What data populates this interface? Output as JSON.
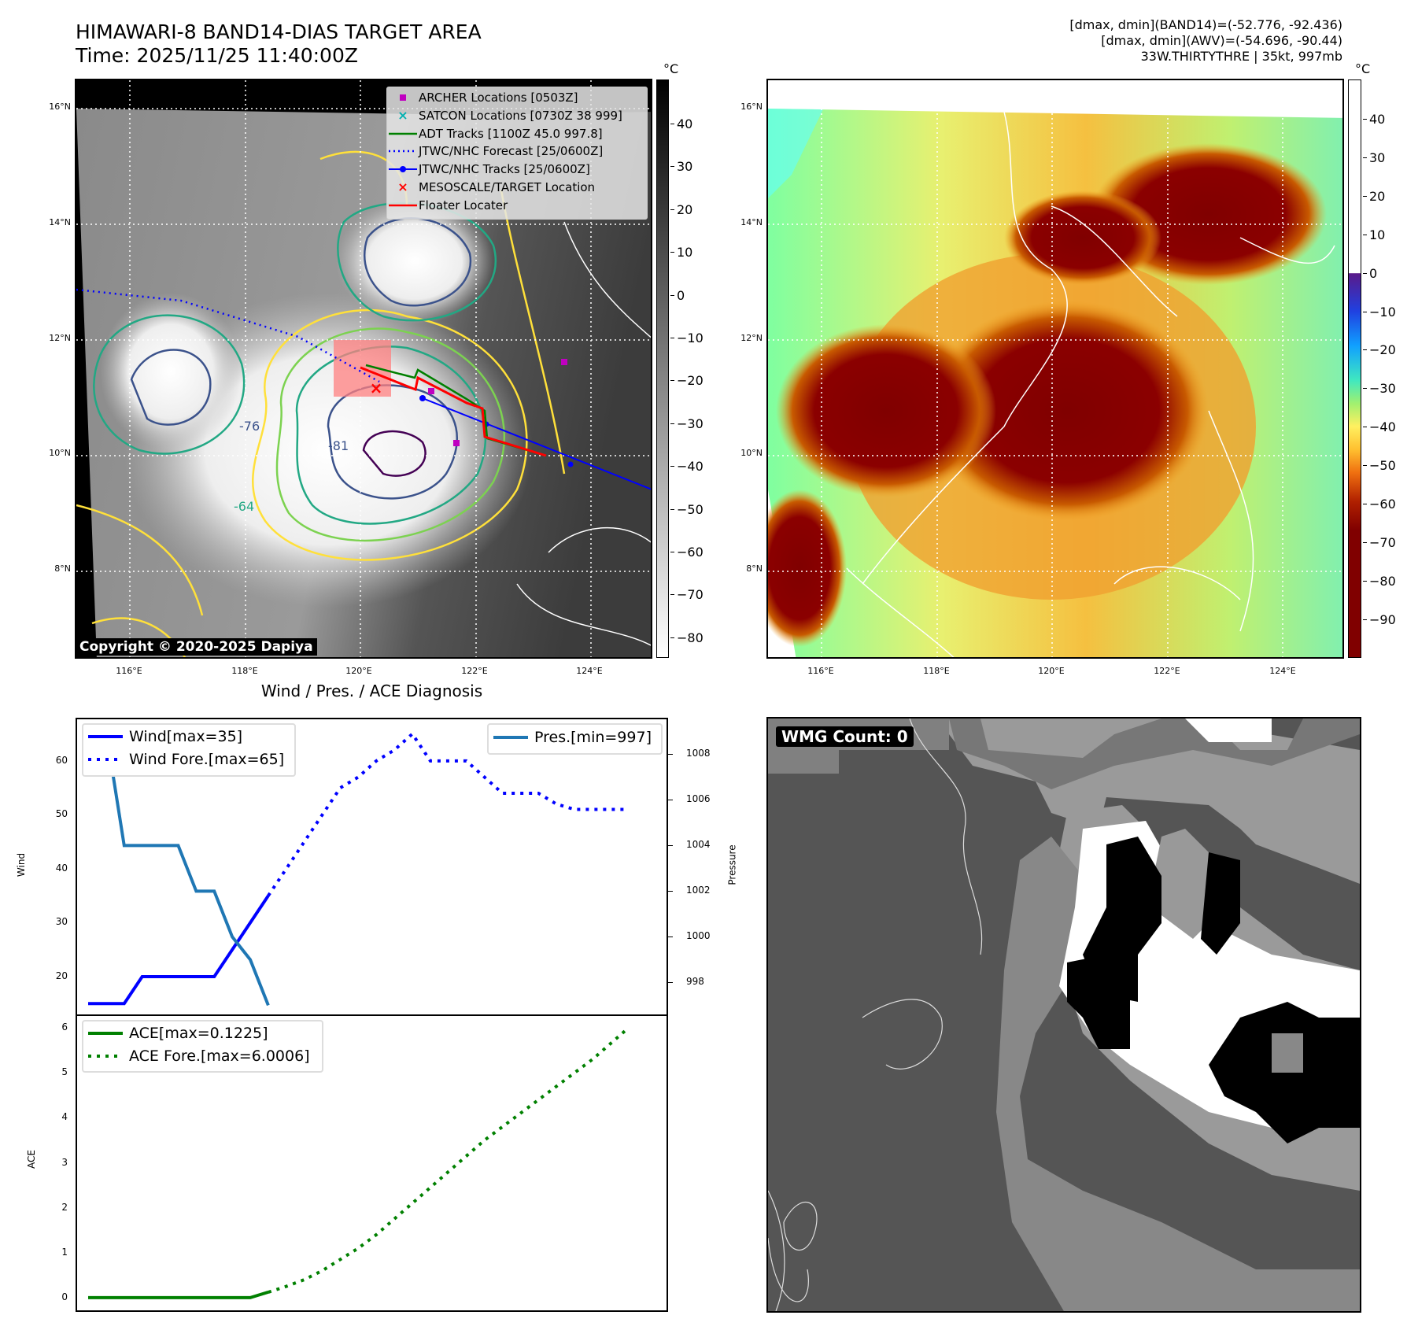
{
  "header": {
    "title": "HIMAWARI-8 BAND14-DIAS TARGET AREA",
    "time": "Time: 2025/11/25 11:40:00Z",
    "stats_band14": "[dmax, dmin](BAND14)=(-52.776, -92.436)",
    "stats_awv": "[dmax, dmin](AWV)=(-54.696, -90.44)",
    "storm": "33W.THIRTYTHRE | 35kt, 997mb"
  },
  "map": {
    "lat_labels": [
      "16°N",
      "14°N",
      "12°N",
      "10°N",
      "8°N"
    ],
    "lon_labels": [
      "116°E",
      "118°E",
      "120°E",
      "122°E",
      "124°E"
    ],
    "unit": "°C",
    "contour_labels": [
      "-81",
      "-64",
      "-76"
    ],
    "copyright": "Copyright © 2020-2025 Dapiya",
    "legend": [
      {
        "label": "ARCHER Locations [0503Z]",
        "color": "#c000c0",
        "icon": "square-marker-icon"
      },
      {
        "label": "SATCON Locations [0730Z 38 999]",
        "color": "#00b0b0",
        "icon": "x-marker-icon"
      },
      {
        "label": "ADT Tracks [1100Z 45.0 997.8]",
        "color": "#008000",
        "icon": "solid-line-icon"
      },
      {
        "label": "JTWC/NHC Forecast [25/0600Z]",
        "color": "#0000ff",
        "icon": "dotted-line-icon"
      },
      {
        "label": "JTWC/NHC Tracks [25/0600Z]",
        "color": "#0000ff",
        "icon": "line-dot-icon"
      },
      {
        "label": "MESOSCALE/TARGET Location",
        "color": "#ff0000",
        "icon": "x-marker-icon"
      },
      {
        "label": "Floater Locater",
        "color": "#ff0000",
        "icon": "solid-line-icon"
      }
    ],
    "gray_colorbar_ticks": [
      "40",
      "30",
      "20",
      "10",
      "0",
      "−10",
      "−20",
      "−30",
      "−40",
      "−50",
      "−60",
      "−70",
      "−80"
    ],
    "color_colorbar_ticks": [
      "40",
      "30",
      "20",
      "10",
      "0",
      "−10",
      "−20",
      "−30",
      "−40",
      "−50",
      "−60",
      "−70",
      "−80",
      "−90"
    ]
  },
  "wmg": {
    "label": "WMG Count: 0"
  },
  "chart_data": {
    "type": "line",
    "title": "Wind / Pres. / ACE Diagnosis",
    "panels": [
      {
        "ylabel": "Wind",
        "ylim": [
          13,
          68
        ],
        "yticks": [
          "60",
          "50",
          "40",
          "30",
          "20"
        ],
        "ytick_values": [
          60,
          50,
          40,
          30,
          20
        ],
        "y2label": "Pressure",
        "y2lim": [
          996.6,
          1009.6
        ],
        "y2ticks": [
          "1008",
          "1006",
          "1004",
          "1002",
          "1000",
          "998"
        ],
        "y2tick_values": [
          1008,
          1006,
          1004,
          1002,
          1000,
          998
        ],
        "series": [
          {
            "name": "Wind[max=35]",
            "axis": "left",
            "style": "solid",
            "color": "#0000ff",
            "x": [
              0,
              1,
              2,
              3,
              4,
              5,
              6,
              7,
              8,
              9,
              10
            ],
            "values": [
              15,
              15,
              15,
              20,
              20,
              20,
              20,
              20,
              25,
              30,
              35
            ]
          },
          {
            "name": "Wind Fore.[max=65]",
            "axis": "left",
            "style": "dotted",
            "color": "#0000ff",
            "x": [
              10,
              11,
              12,
              13,
              14,
              15,
              16,
              17,
              18,
              19,
              20,
              21,
              22,
              23,
              24,
              25,
              26,
              27,
              28,
              29,
              30
            ],
            "values": [
              35,
              40,
              45,
              50,
              55,
              57,
              60,
              62,
              65,
              60,
              60,
              60,
              57,
              54,
              54,
              54,
              52,
              51,
              51,
              51,
              51
            ]
          },
          {
            "name": "Pres.[min=997]",
            "axis": "right",
            "style": "solid",
            "color": "#1f77b4",
            "x": [
              0,
              1,
              2,
              3,
              4,
              5,
              6,
              7,
              8,
              9,
              10
            ],
            "values": [
              1009,
              1009,
              1004,
              1004,
              1004,
              1004,
              1002,
              1002,
              1000,
              999,
              997
            ]
          }
        ]
      },
      {
        "ylabel": "ACE",
        "ylim": [
          -0.3,
          6.3
        ],
        "yticks": [
          "6",
          "5",
          "4",
          "3",
          "2",
          "1",
          "0"
        ],
        "ytick_values": [
          6,
          5,
          4,
          3,
          2,
          1,
          0
        ],
        "series": [
          {
            "name": "ACE[max=0.1225]",
            "axis": "left",
            "style": "solid",
            "color": "#008000",
            "x": [
              0,
              1,
              2,
              3,
              4,
              5,
              6,
              7,
              8,
              9,
              10
            ],
            "values": [
              0,
              0,
              0,
              0,
              0,
              0,
              0,
              0,
              0,
              0,
              0.1225
            ]
          },
          {
            "name": "ACE Fore.[max=6.0006]",
            "axis": "left",
            "style": "dotted",
            "color": "#008000",
            "x": [
              10,
              11,
              12,
              13,
              14,
              15,
              16,
              17,
              18,
              19,
              20,
              21,
              22,
              23,
              24,
              25,
              26,
              27,
              28,
              29,
              30
            ],
            "values": [
              0.12,
              0.25,
              0.4,
              0.6,
              0.85,
              1.1,
              1.4,
              1.75,
              2.1,
              2.45,
              2.8,
              3.15,
              3.5,
              3.8,
              4.1,
              4.4,
              4.7,
              5.0,
              5.3,
              5.65,
              6.0006
            ]
          }
        ]
      }
    ],
    "xlim": [
      -0.7,
      32.2
    ]
  }
}
